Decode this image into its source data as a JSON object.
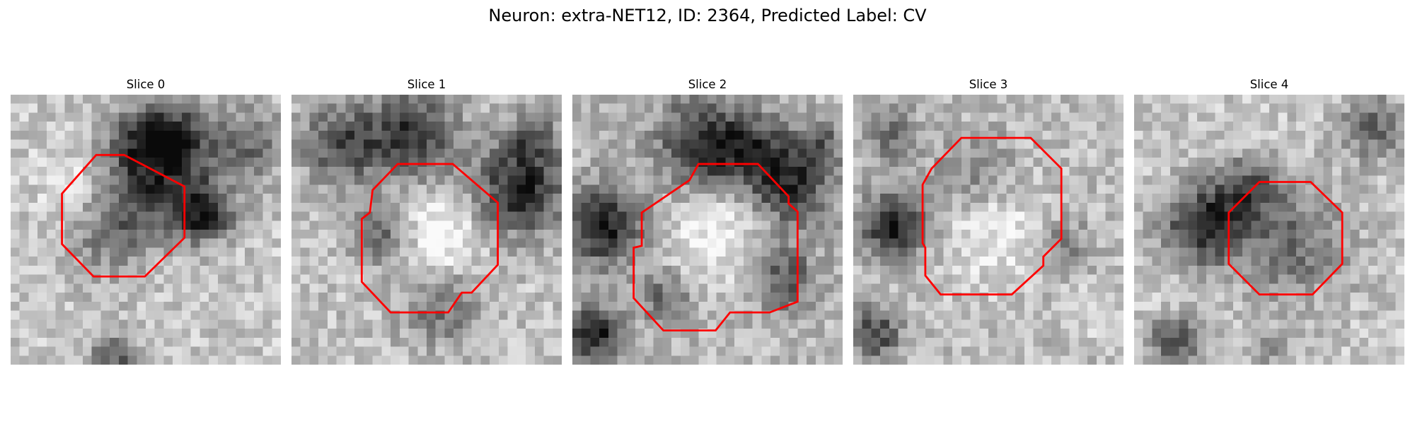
{
  "figure": {
    "title": "Neuron: extra-NET12, ID: 2364, Predicted Label: CV",
    "contour_color": "#ff0000",
    "slices": [
      {
        "label": "Slice 0"
      },
      {
        "label": "Slice 1"
      },
      {
        "label": "Slice 2"
      },
      {
        "label": "Slice 3"
      },
      {
        "label": "Slice 4"
      }
    ]
  }
}
